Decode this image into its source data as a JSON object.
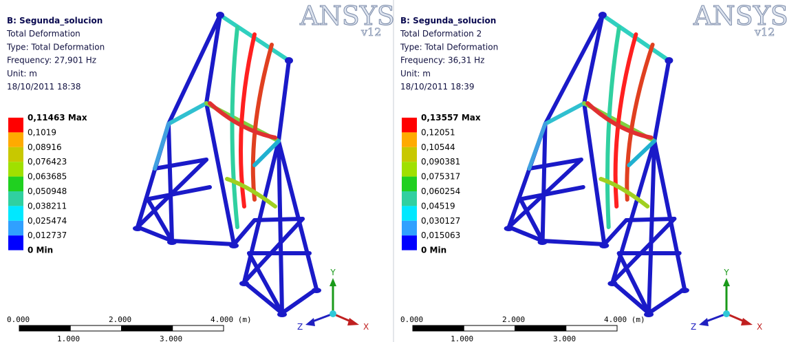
{
  "panels": [
    {
      "title": "B: Segunda_solucion",
      "lines": [
        "Total Deformation",
        "Type: Total Deformation",
        "Frequency: 27,901 Hz",
        "Unit: m",
        "18/10/2011 18:38"
      ],
      "legend_labels": [
        "0,11463 Max",
        "0,1019",
        "0,08916",
        "0,076423",
        "0,063685",
        "0,050948",
        "0,038211",
        "0,025474",
        "0,012737",
        "0 Min"
      ],
      "legend_colors": [
        "#ff0000",
        "#ffaa00",
        "#c8c800",
        "#a0e000",
        "#20d020",
        "#30d0a0",
        "#00e8ff",
        "#30a0ff",
        "#0000ff"
      ],
      "logo": "ANSYS",
      "version": "v12",
      "scale_top": [
        "0.000",
        "2.000",
        "4.000 (m)"
      ],
      "scale_bottom": [
        "1.000",
        "3.000"
      ],
      "axes": {
        "x": "X",
        "y": "Y",
        "z": "Z"
      }
    },
    {
      "title": "B: Segunda_solucion",
      "lines": [
        "Total Deformation 2",
        "Type: Total Deformation",
        "Frequency: 36,31 Hz",
        "Unit: m",
        "18/10/2011 18:39"
      ],
      "legend_labels": [
        "0,13557 Max",
        "0,12051",
        "0,10544",
        "0,090381",
        "0,075317",
        "0,060254",
        "0,04519",
        "0,030127",
        "0,015063",
        "0 Min"
      ],
      "legend_colors": [
        "#ff0000",
        "#ffaa00",
        "#c8c800",
        "#a0e000",
        "#20d020",
        "#30d0a0",
        "#00e8ff",
        "#30a0ff",
        "#0000ff"
      ],
      "logo": "ANSYS",
      "version": "v12",
      "scale_top": [
        "0.000",
        "2.000",
        "4.000 (m)"
      ],
      "scale_bottom": [
        "1.000",
        "3.000"
      ],
      "axes": {
        "x": "X",
        "y": "Y",
        "z": "Z"
      }
    }
  ]
}
